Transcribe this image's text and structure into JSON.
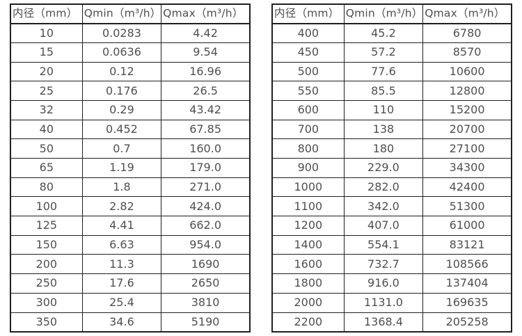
{
  "page": {
    "background_color": "#ffffff",
    "border_color": "#1f1f1f",
    "text_color": "#4f4f4f"
  },
  "left_table": {
    "headers": [
      "内径（mm）",
      "Qmin（m³/h）",
      "Qmax（m³/h）"
    ],
    "rows": [
      [
        "10",
        "0.0283",
        "4.42"
      ],
      [
        "15",
        "0.0636",
        "9.54"
      ],
      [
        "20",
        "0.12",
        "16.96"
      ],
      [
        "25",
        "0.176",
        "26.5"
      ],
      [
        "32",
        "0.29",
        "43.42"
      ],
      [
        "40",
        "0.452",
        "67.85"
      ],
      [
        "50",
        "0.7",
        "160.0"
      ],
      [
        "65",
        "1.19",
        "179.0"
      ],
      [
        "80",
        "1.8",
        "271.0"
      ],
      [
        "100",
        "2.82",
        "424.0"
      ],
      [
        "125",
        "4.41",
        "662.0"
      ],
      [
        "150",
        "6.63",
        "954.0"
      ],
      [
        "200",
        "11.3",
        "1690"
      ],
      [
        "250",
        "17.6",
        "2650"
      ],
      [
        "300",
        "25.4",
        "3810"
      ],
      [
        "350",
        "34.6",
        "5190"
      ]
    ]
  },
  "right_table": {
    "headers": [
      "内径（mm）",
      "Qmin（m³/h）",
      "Qmax（m³/h）"
    ],
    "rows": [
      [
        "400",
        "45.2",
        "6780"
      ],
      [
        "450",
        "57.2",
        "8570"
      ],
      [
        "500",
        "77.6",
        "10600"
      ],
      [
        "550",
        "85.5",
        "12800"
      ],
      [
        "600",
        "110",
        "15200"
      ],
      [
        "700",
        "138",
        "20700"
      ],
      [
        "800",
        "180",
        "27100"
      ],
      [
        "900",
        "229.0",
        "34300"
      ],
      [
        "1000",
        "282.0",
        "42400"
      ],
      [
        "1100",
        "342.0",
        "51300"
      ],
      [
        "1200",
        "407.0",
        "61000"
      ],
      [
        "1400",
        "554.1",
        "83121"
      ],
      [
        "1600",
        "732.7",
        "108566"
      ],
      [
        "1800",
        "916.0",
        "137404"
      ],
      [
        "2000",
        "1131.0",
        "169635"
      ],
      [
        "2200",
        "1368.4",
        "205258"
      ]
    ]
  }
}
